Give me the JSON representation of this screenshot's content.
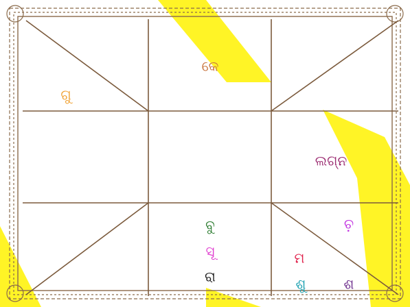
{
  "houses": {
    "top": {
      "label": "କେ",
      "color": "#c8733c"
    },
    "top_left": {
      "label": "ଗୁ",
      "color": "#f0a030"
    },
    "right": {
      "label": "ଲଗ୍ନ",
      "color": "#9a2a70"
    },
    "bottom": [
      {
        "label": "ବୁ",
        "color": "#2e7d32"
      },
      {
        "label": "ସୂ",
        "color": "#e040d0"
      },
      {
        "label": "ରା",
        "color": "#222222"
      }
    ],
    "bottom_right": [
      {
        "label": "ଚ଼",
        "color": "#c030e0"
      },
      {
        "label": "ମ",
        "color": "#e0204a"
      },
      {
        "label": "ଶୁ",
        "color": "#1aa0b0"
      },
      {
        "label": "ଶ",
        "color": "#6a2a8a"
      }
    ]
  }
}
